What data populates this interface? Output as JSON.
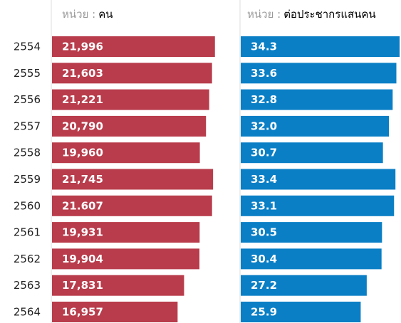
{
  "chart_data": [
    {
      "type": "bar",
      "orientation": "horizontal",
      "unit_prefix": "หน่วย :",
      "unit": "คน",
      "categories": [
        "2554",
        "2555",
        "2556",
        "2557",
        "2558",
        "2559",
        "2560",
        "2561",
        "2562",
        "2563",
        "2564"
      ],
      "values": [
        21996,
        21603,
        21221,
        20790,
        19960,
        21745,
        21607,
        19931,
        19904,
        17831,
        16957
      ],
      "value_labels": [
        "21,996",
        "21,603",
        "21,221",
        "20,790",
        "19,960",
        "21,745",
        "21.607",
        "19,931",
        "19,904",
        "17,831",
        "16,957"
      ],
      "color": "#b83c4b",
      "xlim": [
        0,
        25000
      ]
    },
    {
      "type": "bar",
      "orientation": "horizontal",
      "unit_prefix": "หน่วย :",
      "unit": "ต่อประชากรแสนคน",
      "values": [
        34.3,
        33.6,
        32.8,
        32.0,
        30.7,
        33.4,
        33.1,
        30.5,
        30.4,
        27.2,
        25.9
      ],
      "value_labels": [
        "34.3",
        "33.6",
        "32.8",
        "32.0",
        "30.7",
        "33.4",
        "33.1",
        "30.5",
        "30.4",
        "27.2",
        "25.9"
      ],
      "color": "#0a7fc6",
      "xlim": [
        0,
        34.6
      ]
    }
  ]
}
